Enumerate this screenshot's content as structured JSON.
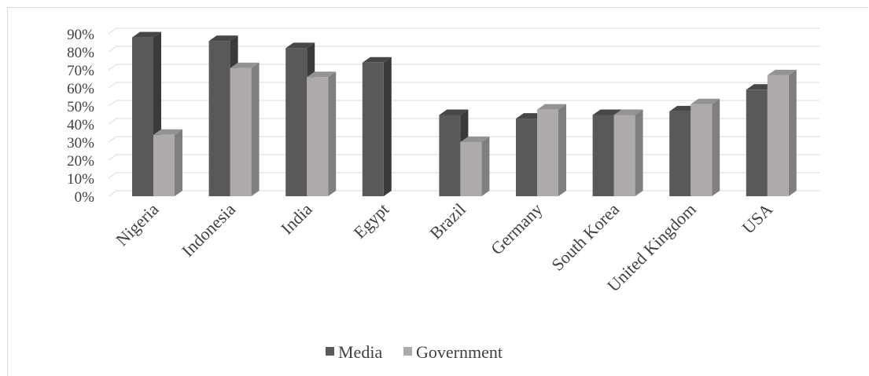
{
  "chart_data": {
    "type": "bar",
    "categories": [
      "Nigeria",
      "Indonesia",
      "India",
      "Egypt",
      "Brazil",
      "Germany",
      "South Korea",
      "United Kingdom",
      "USA"
    ],
    "series": [
      {
        "name": "Media",
        "values": [
          88,
          86,
          82,
          74,
          45,
          43,
          45,
          47,
          59
        ]
      },
      {
        "name": "Government",
        "values": [
          34,
          71,
          66,
          null,
          30,
          48,
          45,
          51,
          67
        ]
      }
    ],
    "yticks": [
      "0%",
      "10%",
      "20%",
      "30%",
      "40%",
      "50%",
      "60%",
      "70%",
      "80%",
      "90%"
    ],
    "ylim": [
      0,
      90
    ],
    "grid": true,
    "legend_position": "bottom",
    "colors": {
      "Media": {
        "front": "#595959",
        "side": "#3a3a3a",
        "top": "#474747"
      },
      "Government": {
        "front": "#aeaaaa",
        "side": "#7f7f7f",
        "top": "#939393"
      },
      "grid": "#d9d9d9"
    }
  }
}
